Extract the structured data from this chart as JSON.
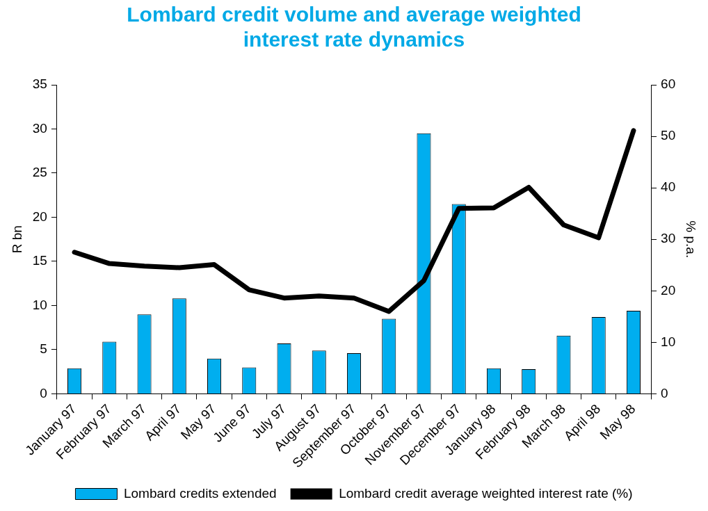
{
  "chart_data": {
    "type": "bar",
    "title": [
      "Lombard credit volume and average weighted",
      "interest rate dynamics"
    ],
    "categories": [
      "January 97",
      "February 97",
      "March 97",
      "April 97",
      "May 97",
      "June 97",
      "July 97",
      "August 97",
      "September 97",
      "October 97",
      "November 97",
      "December 97",
      "January 98",
      "February 98",
      "March 98",
      "April 98",
      "May 98"
    ],
    "ylabel": "R bn",
    "y2label": "% p.a.",
    "ylim": [
      0,
      35
    ],
    "yticks": [
      0,
      5,
      10,
      15,
      20,
      25,
      30,
      35
    ],
    "y2lim": [
      0,
      60
    ],
    "y2ticks": [
      0,
      10,
      20,
      30,
      40,
      50,
      60
    ],
    "grid": false,
    "legend": "bottom",
    "series": [
      {
        "name": "Lombard credits extended",
        "color": "#00aeef",
        "values": [
          2.9,
          5.9,
          9.0,
          10.8,
          4.0,
          3.0,
          5.7,
          4.9,
          4.6,
          8.5,
          29.5,
          21.5,
          2.9,
          2.8,
          6.6,
          8.7,
          9.4
        ]
      },
      {
        "name": "Lombard credit average weighted interest rate (%)",
        "type": "line",
        "axis": "y2",
        "color": "#000000",
        "values": [
          27.5,
          25.3,
          24.8,
          24.5,
          25.1,
          20.2,
          18.6,
          19.0,
          18.6,
          16.0,
          22.0,
          36.0,
          36.1,
          40.1,
          32.8,
          30.3,
          51.1
        ]
      }
    ]
  }
}
